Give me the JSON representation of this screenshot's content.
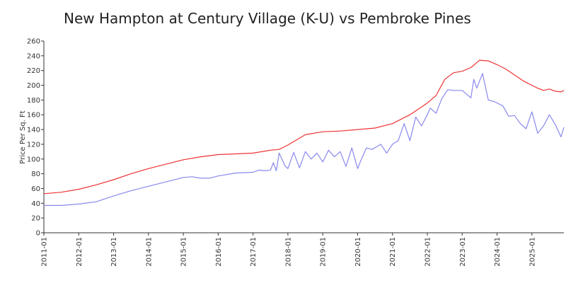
{
  "chart_data": {
    "type": "line",
    "title": "New Hampton at Century Village (K-U) vs Pembroke Pines",
    "xlabel": "",
    "ylabel": "Price Per Sq. Ft",
    "ylim": [
      0,
      260
    ],
    "yticks": [
      0,
      20,
      40,
      60,
      80,
      100,
      120,
      140,
      160,
      180,
      200,
      220,
      240,
      260
    ],
    "xtick_labels": [
      "2011-01",
      "2012-01",
      "2013-01",
      "2014-01",
      "2015-01",
      "2016-01",
      "2017-01",
      "2018-01",
      "2019-01",
      "2020-01",
      "2021-01",
      "2022-01",
      "2023-01",
      "2024-01",
      "2025-01"
    ],
    "grid": false,
    "legend": "none",
    "series": [
      {
        "color": "#ee3333",
        "x": [
          "2011-01",
          "2011-07",
          "2012-01",
          "2012-07",
          "2013-01",
          "2013-07",
          "2014-01",
          "2014-07",
          "2015-01",
          "2015-07",
          "2016-01",
          "2016-07",
          "2017-01",
          "2017-07",
          "2017-10",
          "2018-01",
          "2018-07",
          "2019-01",
          "2019-07",
          "2020-01",
          "2020-07",
          "2021-01",
          "2021-07",
          "2022-01",
          "2022-04",
          "2022-07",
          "2022-10",
          "2023-01",
          "2023-04",
          "2023-07",
          "2023-10",
          "2024-01",
          "2024-04",
          "2024-07",
          "2024-10",
          "2025-01",
          "2025-03",
          "2025-05",
          "2025-07",
          "2025-09",
          "2025-11",
          "2025-12"
        ],
        "values": [
          53,
          55,
          59,
          65,
          72,
          80,
          87,
          93,
          99,
          103,
          106,
          107,
          108,
          112,
          113,
          119,
          133,
          137,
          138,
          140,
          142,
          148,
          160,
          176,
          186,
          208,
          217,
          219,
          224,
          234,
          233,
          228,
          222,
          214,
          206,
          200,
          196,
          193,
          195,
          192,
          191,
          193
        ]
      },
      {
        "color": "#8888ee",
        "x": [
          "2011-01",
          "2011-07",
          "2012-01",
          "2012-07",
          "2013-01",
          "2013-07",
          "2014-01",
          "2014-07",
          "2015-01",
          "2015-04",
          "2015-07",
          "2015-10",
          "2016-01",
          "2016-07",
          "2017-01",
          "2017-03",
          "2017-05",
          "2017-07",
          "2017-08",
          "2017-09",
          "2017-10",
          "2017-12",
          "2018-01",
          "2018-03",
          "2018-05",
          "2018-07",
          "2018-09",
          "2018-11",
          "2019-01",
          "2019-03",
          "2019-05",
          "2019-07",
          "2019-09",
          "2019-11",
          "2020-01",
          "2020-02",
          "2020-04",
          "2020-06",
          "2020-09",
          "2020-11",
          "2021-01",
          "2021-03",
          "2021-05",
          "2021-07",
          "2021-09",
          "2021-11",
          "2022-01",
          "2022-02",
          "2022-04",
          "2022-06",
          "2022-08",
          "2022-10",
          "2023-01",
          "2023-04",
          "2023-05",
          "2023-06",
          "2023-08",
          "2023-10",
          "2023-12",
          "2024-01",
          "2024-03",
          "2024-05",
          "2024-07",
          "2024-09",
          "2024-11",
          "2025-01",
          "2025-03",
          "2025-05",
          "2025-07",
          "2025-09",
          "2025-11",
          "2025-12"
        ],
        "values": [
          37,
          37,
          39,
          42,
          50,
          57,
          63,
          69,
          75,
          76,
          74,
          74,
          77,
          81,
          82,
          85,
          84,
          85,
          95,
          84,
          108,
          91,
          87,
          109,
          88,
          110,
          100,
          108,
          96,
          112,
          103,
          110,
          90,
          115,
          87,
          97,
          115,
          113,
          120,
          108,
          120,
          125,
          148,
          125,
          157,
          145,
          160,
          169,
          162,
          182,
          194,
          193,
          193,
          183,
          208,
          196,
          216,
          180,
          178,
          176,
          172,
          158,
          159,
          148,
          141,
          164,
          135,
          145,
          160,
          147,
          130,
          143
        ]
      }
    ]
  }
}
